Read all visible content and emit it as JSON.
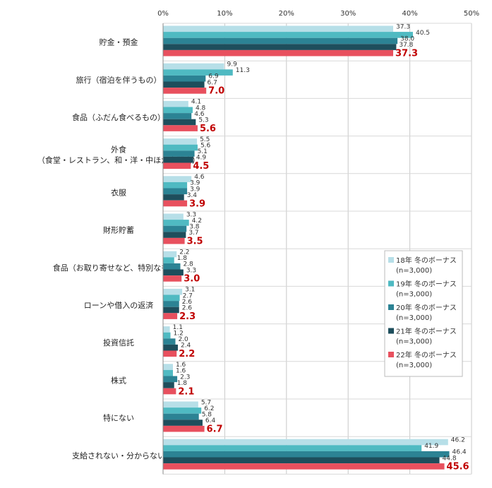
{
  "chart_data": {
    "type": "bar",
    "orientation": "horizontal",
    "xlim": [
      0,
      50
    ],
    "x_ticks": [
      "0%",
      "10%",
      "20%",
      "30%",
      "40%",
      "50%"
    ],
    "categories": [
      [
        "貯金・預金"
      ],
      [
        "旅行（宿泊を伴うもの）"
      ],
      [
        "食品（ふだん食べるもの）"
      ],
      [
        "外食",
        "（食堂・レストラン、和・洋・中ほか専門店）"
      ],
      [
        "衣服"
      ],
      [
        "財形貯蓄"
      ],
      [
        "食品（お取り寄せなど、特別なもの）"
      ],
      [
        "ローンや借入の返済"
      ],
      [
        "投資信託"
      ],
      [
        "株式"
      ],
      [
        "特にない"
      ],
      [
        "支給されない・分からない"
      ]
    ],
    "series": [
      {
        "name": [
          "18年 冬のボーナス",
          "(n=3,000)"
        ],
        "color": "#b7dfe8",
        "values": [
          37.3,
          9.9,
          4.1,
          5.5,
          4.6,
          3.3,
          2.2,
          3.1,
          1.1,
          1.6,
          5.7,
          46.2
        ],
        "labels": [
          "37.3",
          "9.9",
          "4.1",
          "5.5",
          "4.6",
          "3.3",
          "2.2",
          "3.1",
          "1.1",
          "1.6",
          "5.7",
          "46.2"
        ]
      },
      {
        "name": [
          "19年 冬のボーナス",
          "(n=3,000)"
        ],
        "color": "#4fbac2",
        "values": [
          40.5,
          11.3,
          4.8,
          5.6,
          3.9,
          4.2,
          1.8,
          2.7,
          1.2,
          1.6,
          6.2,
          41.9
        ],
        "labels": [
          "40.5",
          "11.3",
          "4.8",
          "5.6",
          "3.9",
          "4.2",
          "1.8",
          "2.7",
          "1.2",
          "1.6",
          "6.2",
          "41.9"
        ]
      },
      {
        "name": [
          "20年 冬のボーナス",
          "(n=3,000)"
        ],
        "color": "#2c8394",
        "values": [
          38.0,
          6.9,
          4.6,
          5.1,
          3.9,
          3.8,
          2.8,
          2.6,
          2.0,
          2.3,
          5.8,
          46.4
        ],
        "labels": [
          "38.0",
          "6.9",
          "4.6",
          "5.1",
          "3.9",
          "3.8",
          "2.8",
          "2.6",
          "2.0",
          "2.3",
          "5.8",
          "46.4"
        ]
      },
      {
        "name": [
          "21年 冬のボーナス",
          "(n=3,000)"
        ],
        "color": "#1e4e5c",
        "values": [
          37.8,
          6.7,
          5.3,
          4.9,
          3.4,
          3.7,
          3.3,
          2.6,
          2.4,
          1.8,
          6.4,
          44.8
        ],
        "labels": [
          "37.8",
          "6.7",
          "5.3",
          "4.9",
          "3.4",
          "3.7",
          "3.3",
          "2.6",
          "2.4",
          "1.8",
          "6.4",
          "44.8"
        ]
      },
      {
        "name": [
          "22年 冬のボーナス",
          "(n=3,000)"
        ],
        "color": "#e8505e",
        "highlight": true,
        "values": [
          37.3,
          7.0,
          5.6,
          4.5,
          3.9,
          3.5,
          3.0,
          2.3,
          2.2,
          2.1,
          6.7,
          45.6
        ],
        "labels": [
          "37.3",
          "7.0",
          "5.6",
          "4.5",
          "3.9",
          "3.5",
          "3.0",
          "2.3",
          "2.2",
          "2.1",
          "6.7",
          "45.6"
        ]
      }
    ],
    "grid": true,
    "legend_position": "right-middle"
  }
}
